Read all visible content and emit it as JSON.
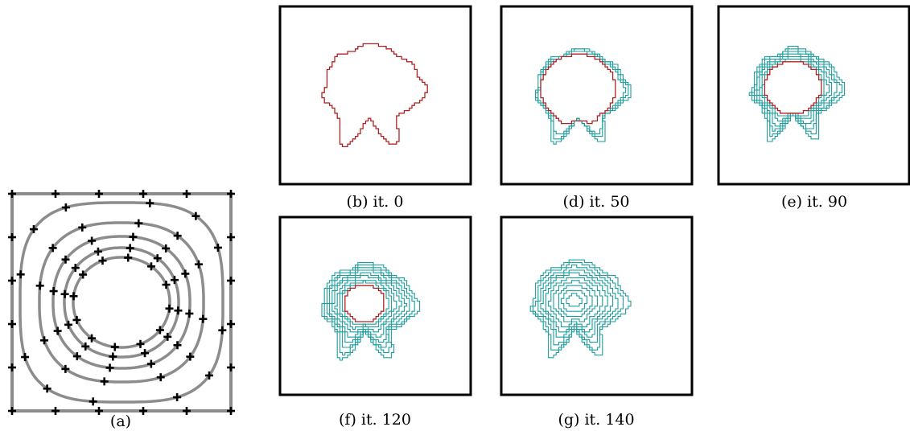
{
  "captions": {
    "a": "(a)",
    "b": "(b) it. 0",
    "d": "(d) it. 50",
    "e": "(e) it. 90",
    "f": "(f) it. 120",
    "g": "(g) it. 140"
  },
  "colors": {
    "current_contour": "#b22222",
    "previous_contours": "#1f9e9e",
    "grid_lines": "#8c8c8c",
    "markers": "#000000",
    "frame": "#000000"
  }
}
